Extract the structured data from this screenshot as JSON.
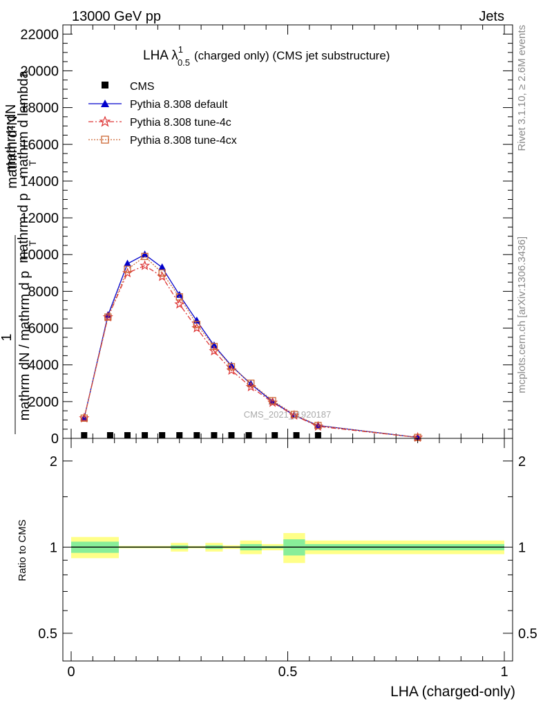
{
  "header": {
    "left": "13000 GeV pp",
    "right": "Jets"
  },
  "side_labels": {
    "rivet": "Rivet 3.1.10, ≥ 2.6M events",
    "mcplots": "mcplots.cern.ch [arXiv:1306.3436]"
  },
  "chart_data": [
    {
      "type": "line",
      "title_main": "LHA λ",
      "title_sup": "1",
      "title_sub": "0.5",
      "title_rest": "(charged only) (CMS jet substructure)",
      "ylabel_lines": [
        "mathrm d²N",
        "mathrm d p",
        "T",
        "mathrm d lambda"
      ],
      "ylabel_frac_num": "1",
      "ylabel_frac_den": "mathrm dN / mathrm d p",
      "ylabel_frac_den_sub": "T",
      "ylabel_garbled": "mathrm dN",
      "ylim": [
        0,
        22500
      ],
      "yticks": [
        0,
        2000,
        4000,
        6000,
        8000,
        10000,
        12000,
        14000,
        16000,
        18000,
        20000,
        22000
      ],
      "ytick_labels": [
        "0",
        "2000",
        "4000",
        "6000",
        "8000",
        "10000",
        "12000",
        "14000",
        "16000",
        "18000",
        "20000",
        "22000"
      ],
      "xlim": [
        -0.02,
        1.02
      ],
      "watermark": "CMS_2021_I1920187",
      "legend_position": "top-left",
      "series": [
        {
          "name": "CMS",
          "color": "#000000",
          "marker": "square",
          "x": [
            0.03,
            0.09,
            0.13,
            0.17,
            0.21,
            0.25,
            0.29,
            0.33,
            0.37,
            0.41,
            0.47,
            0.52,
            0.57
          ],
          "y": [
            0,
            0,
            0,
            0,
            0,
            0,
            0,
            0,
            0,
            0,
            0,
            0,
            0
          ]
        },
        {
          "name": "Pythia 8.308 default",
          "color": "#0000cc",
          "marker": "triangle",
          "dash": "solid",
          "x": [
            0.03,
            0.085,
            0.13,
            0.17,
            0.21,
            0.25,
            0.29,
            0.33,
            0.37,
            0.415,
            0.465,
            0.515,
            0.57,
            0.8
          ],
          "y": [
            1100,
            6700,
            9500,
            10000,
            9300,
            7800,
            6400,
            5050,
            3950,
            2950,
            2000,
            1250,
            700,
            50
          ]
        },
        {
          "name": "Pythia 8.308 tune-4c",
          "color": "#dd3333",
          "marker": "star",
          "dash": "dashdot",
          "x": [
            0.03,
            0.085,
            0.13,
            0.17,
            0.21,
            0.25,
            0.29,
            0.33,
            0.37,
            0.415,
            0.465,
            0.515,
            0.57,
            0.8
          ],
          "y": [
            1100,
            6600,
            9000,
            9400,
            8800,
            7300,
            6000,
            4750,
            3700,
            2800,
            1950,
            1250,
            650,
            50
          ]
        },
        {
          "name": "Pythia 8.308 tune-4cx",
          "color": "#cc6633",
          "marker": "open-square",
          "dash": "dotted",
          "x": [
            0.03,
            0.085,
            0.13,
            0.17,
            0.21,
            0.25,
            0.29,
            0.33,
            0.37,
            0.415,
            0.465,
            0.515,
            0.57,
            0.8
          ],
          "y": [
            1100,
            6600,
            9200,
            9900,
            9000,
            7700,
            6200,
            5000,
            3900,
            3000,
            2050,
            1300,
            700,
            50
          ]
        }
      ]
    },
    {
      "type": "area",
      "ylabel": "Ratio to CMS",
      "xlabel": "LHA (charged-only)",
      "ylim": [
        0.4,
        2.4
      ],
      "log_y": true,
      "yticks": [
        0.5,
        1,
        2
      ],
      "ytick_labels": [
        "0.5",
        "1",
        "2"
      ],
      "xlim": [
        -0.02,
        1.02
      ],
      "xticks": [
        0,
        0.5,
        1
      ],
      "xtick_labels": [
        "0",
        "0.5",
        "1"
      ],
      "reference": 1,
      "band_colors": {
        "inner": "#88ee99",
        "outer": "#ffff88"
      },
      "bins": [
        {
          "lo": 0.0,
          "hi": 0.11,
          "inner": [
            0.955,
            1.045
          ],
          "outer": [
            0.915,
            1.085
          ]
        },
        {
          "lo": 0.11,
          "hi": 0.23,
          "inner": [
            0.995,
            1.005
          ],
          "outer": [
            0.99,
            1.01
          ]
        },
        {
          "lo": 0.23,
          "hi": 0.27,
          "inner": [
            0.985,
            1.015
          ],
          "outer": [
            0.965,
            1.035
          ]
        },
        {
          "lo": 0.27,
          "hi": 0.31,
          "inner": [
            0.995,
            1.005
          ],
          "outer": [
            0.99,
            1.01
          ]
        },
        {
          "lo": 0.31,
          "hi": 0.35,
          "inner": [
            0.985,
            1.015
          ],
          "outer": [
            0.965,
            1.035
          ]
        },
        {
          "lo": 0.35,
          "hi": 0.39,
          "inner": [
            0.995,
            1.005
          ],
          "outer": [
            0.985,
            1.015
          ]
        },
        {
          "lo": 0.39,
          "hi": 0.44,
          "inner": [
            0.975,
            1.025
          ],
          "outer": [
            0.945,
            1.055
          ]
        },
        {
          "lo": 0.44,
          "hi": 0.49,
          "inner": [
            0.99,
            1.01
          ],
          "outer": [
            0.975,
            1.025
          ]
        },
        {
          "lo": 0.49,
          "hi": 0.54,
          "inner": [
            0.935,
            1.065
          ],
          "outer": [
            0.88,
            1.12
          ]
        },
        {
          "lo": 0.54,
          "hi": 1.0,
          "inner": [
            0.975,
            1.025
          ],
          "outer": [
            0.945,
            1.055
          ]
        }
      ]
    }
  ]
}
